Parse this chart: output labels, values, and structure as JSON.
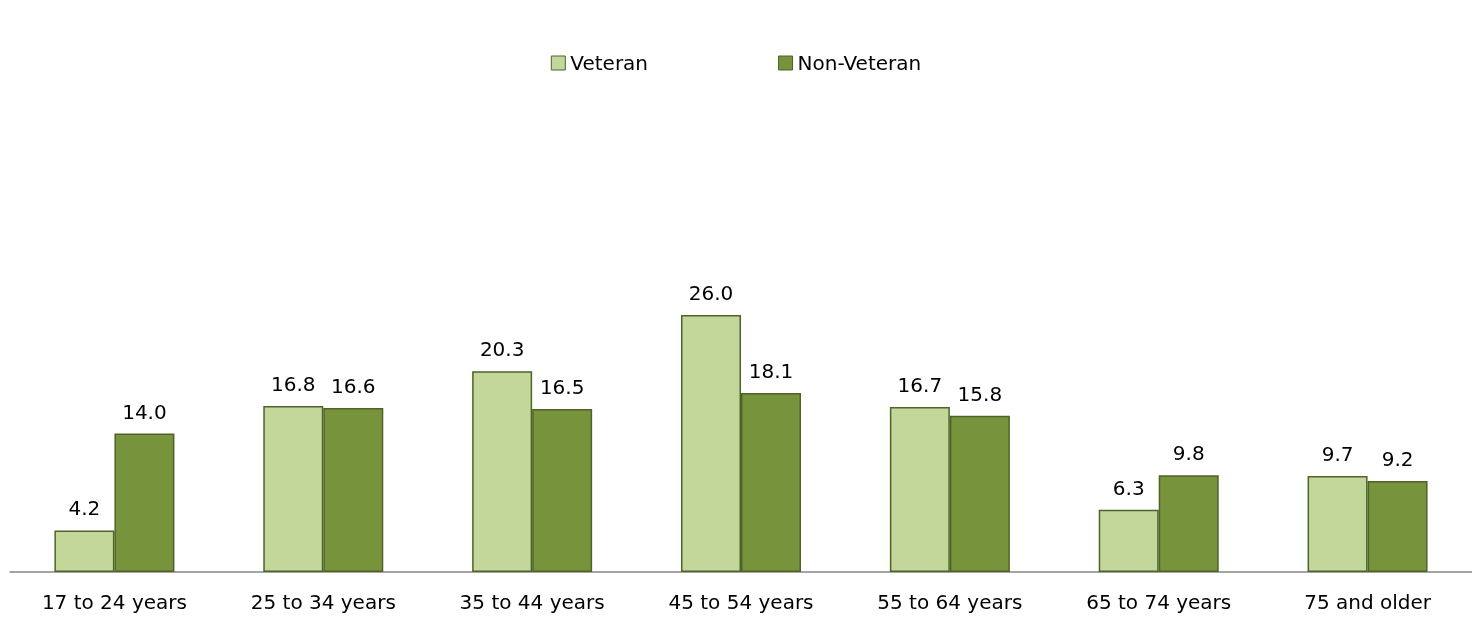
{
  "chart_data": {
    "type": "bar",
    "categories": [
      "17 to 24 years",
      "25 to 34 years",
      "35 to 44 years",
      "45 to 54 years",
      "55 to 64 years",
      "65 to 74 years",
      "75 and older"
    ],
    "series": [
      {
        "name": "Veteran",
        "color": "#c4d79b",
        "values": [
          4.2,
          16.8,
          20.3,
          26.0,
          16.7,
          6.3,
          9.7
        ],
        "value_labels": [
          "4.2",
          "16.8",
          "20.3",
          "26.0",
          "16.7",
          "6.3",
          "9.7"
        ]
      },
      {
        "name": "Non-Veteran",
        "color": "#77933c",
        "values": [
          14.0,
          16.6,
          16.5,
          18.1,
          15.8,
          9.8,
          9.2
        ],
        "value_labels": [
          "14.0",
          "16.6",
          "16.5",
          "18.1",
          "15.8",
          "9.8",
          "9.2"
        ]
      }
    ],
    "legend": "top"
  }
}
